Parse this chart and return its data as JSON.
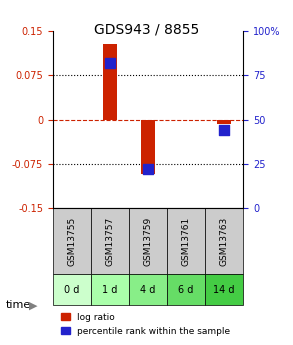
{
  "title": "GDS943 / 8855",
  "samples": [
    "GSM13755",
    "GSM13757",
    "GSM13759",
    "GSM13761",
    "GSM13763"
  ],
  "time_labels": [
    "0 d",
    "1 d",
    "4 d",
    "6 d",
    "14 d"
  ],
  "log_ratios": [
    0.0,
    0.128,
    -0.093,
    0.0,
    -0.008
  ],
  "percentile_ranks": [
    null,
    82.0,
    22.0,
    null,
    44.0
  ],
  "ylim_left": [
    -0.15,
    0.15
  ],
  "ylim_right": [
    0,
    100
  ],
  "yticks_left": [
    -0.15,
    -0.075,
    0,
    0.075,
    0.15
  ],
  "yticks_right": [
    0,
    25,
    50,
    75,
    100
  ],
  "ytick_labels_left": [
    "-0.15",
    "-0.075",
    "0",
    "0.075",
    "0.15"
  ],
  "ytick_labels_right": [
    "0",
    "25",
    "50",
    "75",
    "100%"
  ],
  "hlines_dotted": [
    -0.075,
    0.075
  ],
  "hline_dashed": 0,
  "bar_color": "#cc2200",
  "dot_color": "#2222cc",
  "bar_width": 0.35,
  "dot_size": 60,
  "gsm_bg_color": "#cccccc",
  "time_colors": [
    "#ccffcc",
    "#aaffaa",
    "#88ee88",
    "#66dd66",
    "#44cc44"
  ],
  "fig_width": 2.93,
  "fig_height": 3.45,
  "legend_items": [
    "log ratio",
    "percentile rank within the sample"
  ],
  "time_label": "time"
}
